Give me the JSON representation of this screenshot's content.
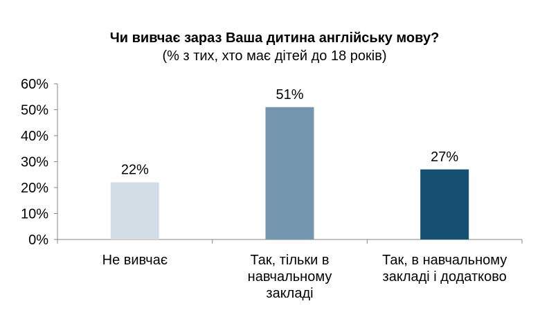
{
  "title": "Чи вивчає зараз Ваша дитина англійську мову?",
  "subtitle": "(% з тих, хто має дітей до 18 років)",
  "chart_data": {
    "type": "bar",
    "categories": [
      [
        "Не вивчає"
      ],
      [
        "Так, тільки в",
        "навчальному",
        "закладі"
      ],
      [
        "Так, в навчальному",
        "закладі і додатково"
      ]
    ],
    "values": [
      22,
      51,
      27
    ],
    "data_labels": [
      "22%",
      "51%",
      "27%"
    ],
    "colors": [
      "#d3dde5",
      "#7497af",
      "#154f71"
    ],
    "y_ticks": [
      "0%",
      "10%",
      "20%",
      "30%",
      "40%",
      "50%",
      "60%"
    ],
    "ylim": [
      0,
      60
    ],
    "grid": false,
    "legend": "none"
  }
}
